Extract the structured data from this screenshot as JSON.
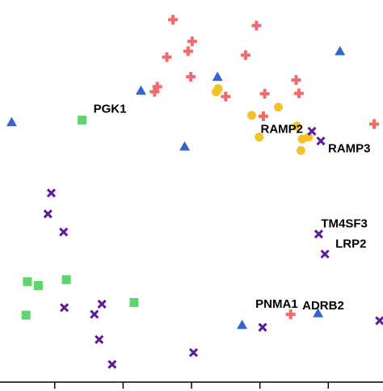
{
  "chart_data": {
    "type": "scatter",
    "title": "",
    "xlabel": "",
    "ylabel": "",
    "xlim": [
      -0.8,
      4.8
    ],
    "ylim": [
      0,
      9.7
    ],
    "x_ticks": [
      0,
      1,
      2,
      3,
      4
    ],
    "tick_labels_visible": false,
    "grid": false,
    "legend": "none",
    "series": [
      {
        "marker": "plus",
        "color": "#f26b6b",
        "points": [
          {
            "x": 1.73,
            "y": 9.2,
            "label": ""
          },
          {
            "x": 2.95,
            "y": 9.05,
            "label": ""
          },
          {
            "x": 2.01,
            "y": 8.65,
            "label": ""
          },
          {
            "x": 1.95,
            "y": 8.4,
            "label": ""
          },
          {
            "x": 1.64,
            "y": 8.25,
            "label": ""
          },
          {
            "x": 2.79,
            "y": 8.3,
            "label": ""
          },
          {
            "x": 1.99,
            "y": 7.75,
            "label": ""
          },
          {
            "x": 1.5,
            "y": 7.5,
            "label": ""
          },
          {
            "x": 1.46,
            "y": 7.37,
            "label": ""
          },
          {
            "x": 2.5,
            "y": 7.25,
            "label": ""
          },
          {
            "x": 3.53,
            "y": 7.67,
            "label": ""
          },
          {
            "x": 3.57,
            "y": 7.33,
            "label": ""
          },
          {
            "x": 3.07,
            "y": 7.32,
            "label": ""
          },
          {
            "x": 3.05,
            "y": 6.75,
            "label": ""
          },
          {
            "x": 4.67,
            "y": 6.55,
            "label": ""
          },
          {
            "x": 3.45,
            "y": 1.72,
            "label": "PNMA1"
          }
        ]
      },
      {
        "marker": "triangle",
        "color": "#3366cc",
        "points": [
          {
            "x": 4.17,
            "y": 8.4,
            "label": ""
          },
          {
            "x": 2.38,
            "y": 7.75,
            "label": ""
          },
          {
            "x": 1.26,
            "y": 7.4,
            "label": ""
          },
          {
            "x": -0.63,
            "y": 6.6,
            "label": ""
          },
          {
            "x": 1.9,
            "y": 5.98,
            "label": ""
          },
          {
            "x": 2.74,
            "y": 1.45,
            "label": ""
          },
          {
            "x": 3.85,
            "y": 1.75,
            "label": ""
          }
        ]
      },
      {
        "marker": "circle",
        "color": "#f5c22c",
        "points": [
          {
            "x": 2.36,
            "y": 7.37,
            "label": ""
          },
          {
            "x": 2.39,
            "y": 7.45,
            "label": ""
          },
          {
            "x": 3.27,
            "y": 6.98,
            "label": ""
          },
          {
            "x": 2.88,
            "y": 6.77,
            "label": ""
          },
          {
            "x": 3.54,
            "y": 6.5,
            "label": ""
          },
          {
            "x": 2.99,
            "y": 6.22,
            "label": ""
          },
          {
            "x": 3.62,
            "y": 6.17,
            "label": ""
          },
          {
            "x": 3.71,
            "y": 6.22,
            "label": ""
          },
          {
            "x": 3.6,
            "y": 5.88,
            "label": ""
          }
        ]
      },
      {
        "marker": "square",
        "color": "#5dd56d",
        "points": [
          {
            "x": 0.4,
            "y": 6.65,
            "label": "PGK1"
          },
          {
            "x": 0.17,
            "y": 2.6,
            "label": ""
          },
          {
            "x": -0.4,
            "y": 2.55,
            "label": ""
          },
          {
            "x": -0.24,
            "y": 2.45,
            "label": ""
          },
          {
            "x": 1.16,
            "y": 2.02,
            "label": ""
          },
          {
            "x": -0.42,
            "y": 1.7,
            "label": ""
          }
        ]
      },
      {
        "marker": "x",
        "color": "#5c1a9e",
        "points": [
          {
            "x": 3.76,
            "y": 6.37,
            "label": "RAMP2"
          },
          {
            "x": 3.89,
            "y": 6.12,
            "label": "RAMP3"
          },
          {
            "x": -0.05,
            "y": 4.8,
            "label": ""
          },
          {
            "x": -0.1,
            "y": 4.27,
            "label": ""
          },
          {
            "x": 0.13,
            "y": 3.81,
            "label": ""
          },
          {
            "x": 3.86,
            "y": 3.76,
            "label": "TM4SF3"
          },
          {
            "x": 3.95,
            "y": 3.25,
            "label": "LRP2"
          },
          {
            "x": 0.69,
            "y": 1.98,
            "label": ""
          },
          {
            "x": 0.14,
            "y": 1.89,
            "label": ""
          },
          {
            "x": 0.58,
            "y": 1.72,
            "label": ""
          },
          {
            "x": 4.75,
            "y": 1.56,
            "label": "ADRB2"
          },
          {
            "x": 3.04,
            "y": 1.39,
            "label": ""
          },
          {
            "x": 0.65,
            "y": 1.08,
            "label": ""
          },
          {
            "x": 2.03,
            "y": 0.75,
            "label": ""
          },
          {
            "x": 0.84,
            "y": 0.45,
            "label": ""
          }
        ]
      }
    ]
  }
}
